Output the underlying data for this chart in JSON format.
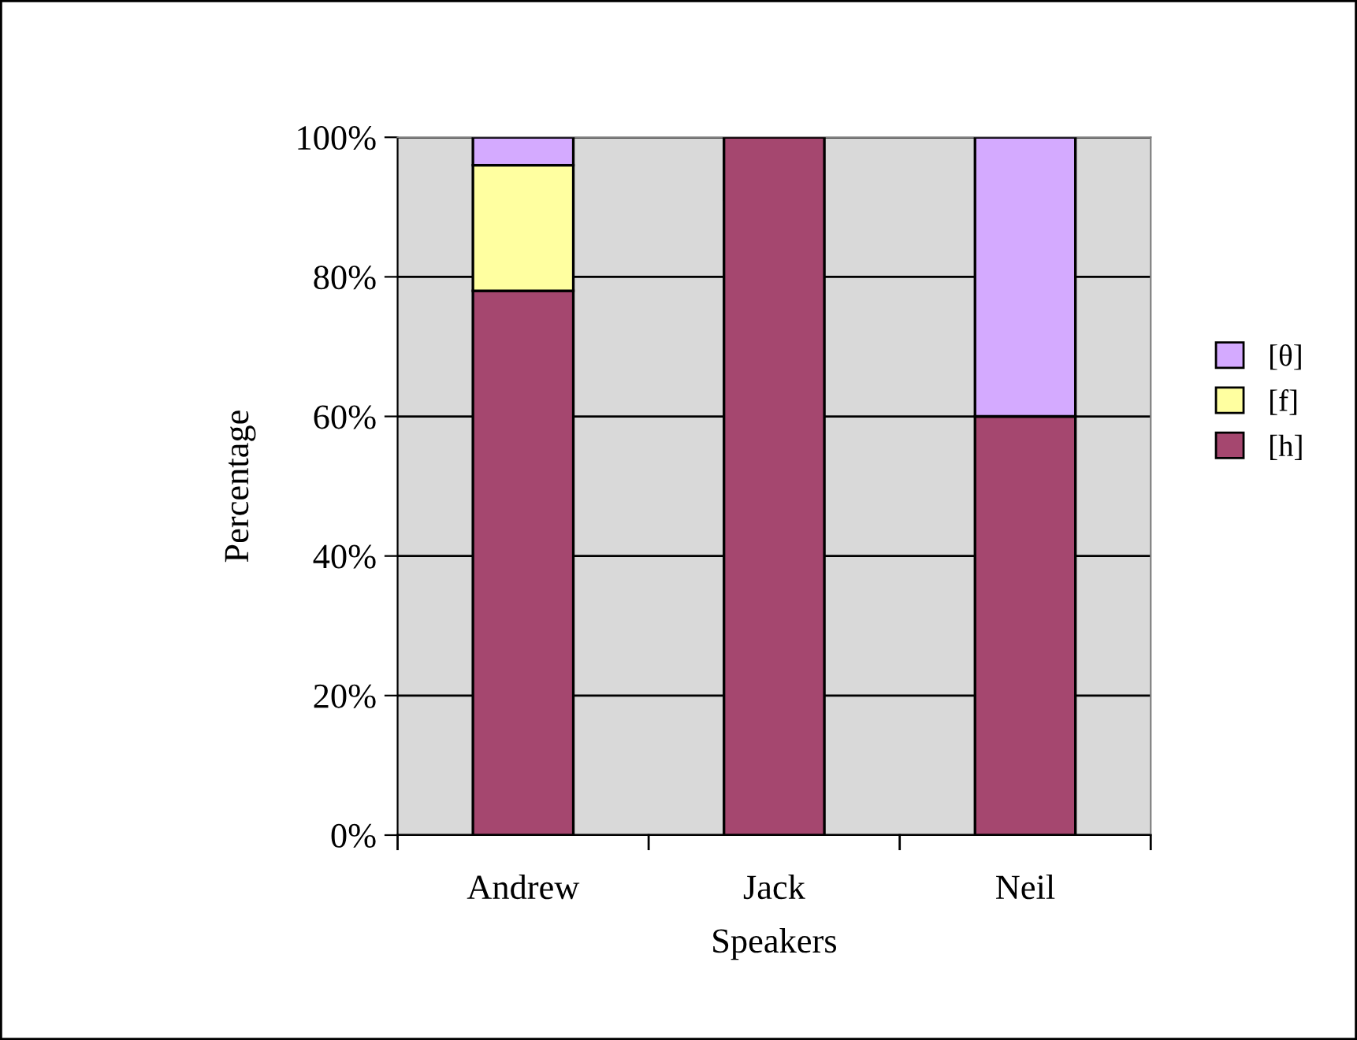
{
  "chart_data": {
    "type": "bar",
    "stacked": true,
    "xlabel": "Speakers",
    "ylabel": "Percentage",
    "categories": [
      "Andrew",
      "Jack",
      "Neil"
    ],
    "series": [
      {
        "name": "[h]",
        "color": "#a5476f",
        "values": [
          78,
          100,
          60
        ]
      },
      {
        "name": "[f]",
        "color": "#ffffa0",
        "values": [
          18,
          0,
          0
        ]
      },
      {
        "name": "[θ]",
        "color": "#d4aaff",
        "values": [
          4,
          0,
          40
        ]
      }
    ],
    "ylim": [
      0,
      100
    ],
    "yticks": [
      {
        "value": 0,
        "label": "0%"
      },
      {
        "value": 20,
        "label": "20%"
      },
      {
        "value": 40,
        "label": "40%"
      },
      {
        "value": 60,
        "label": "60%"
      },
      {
        "value": 80,
        "label": "80%"
      },
      {
        "value": 100,
        "label": "100%"
      }
    ],
    "grid": "y",
    "legend": "right"
  }
}
